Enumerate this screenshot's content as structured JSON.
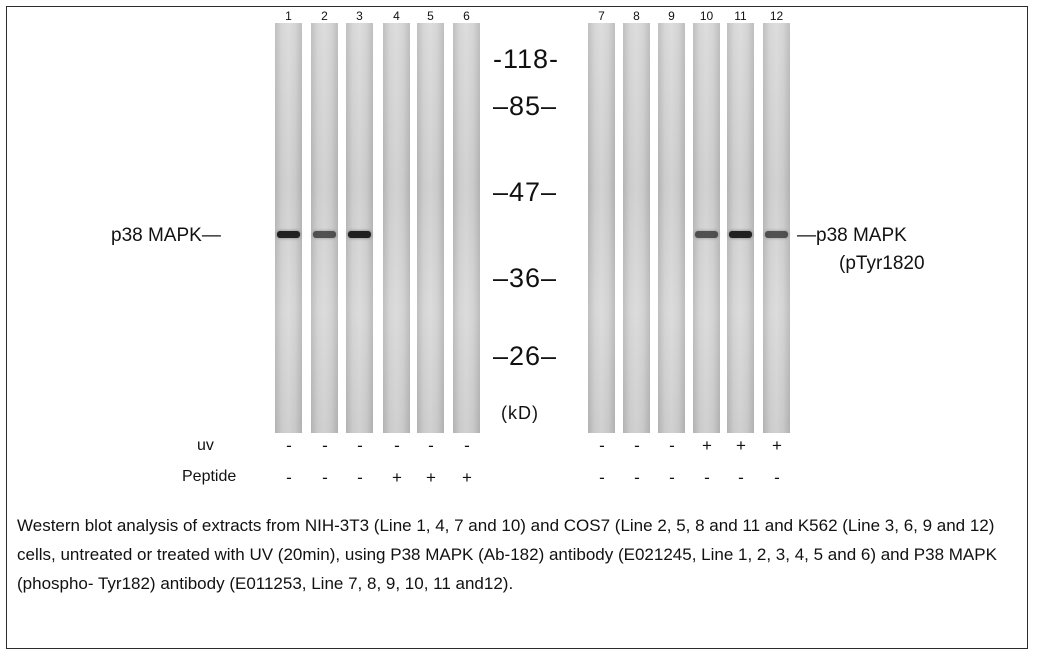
{
  "lanes": [
    {
      "number": "1",
      "band": "strong"
    },
    {
      "number": "2",
      "band": "medium"
    },
    {
      "number": "3",
      "band": "strong"
    },
    {
      "number": "4",
      "band": "none"
    },
    {
      "number": "5",
      "band": "none"
    },
    {
      "number": "6",
      "band": "none"
    },
    {
      "number": "7",
      "band": "none"
    },
    {
      "number": "8",
      "band": "none"
    },
    {
      "number": "9",
      "band": "none"
    },
    {
      "number": "10",
      "band": "medium"
    },
    {
      "number": "11",
      "band": "strong"
    },
    {
      "number": "12",
      "band": "medium"
    }
  ],
  "markers": [
    "-118-",
    "–85–",
    "–47–",
    "–36–",
    "–26–"
  ],
  "unit": "(kD)",
  "left_label": "p38 MAPK—",
  "right_label_line1": "—p38 MAPK",
  "right_label_line2": "(pTyr1820",
  "uv_label": "uv",
  "peptide_label": "Peptide",
  "uv_marks": [
    "-",
    "-",
    "-",
    "-",
    "-",
    "-",
    "-",
    "-",
    "-",
    "+",
    "+",
    "+"
  ],
  "peptide_marks": [
    "-",
    "-",
    "-",
    "+",
    "+",
    "+",
    "-",
    "-",
    "-",
    "-",
    "-",
    "-"
  ],
  "caption": "Western blot analysis of extracts from NIH-3T3 (Line 1, 4, 7 and 10) and COS7 (Line 2, 5, 8 and 11 and K562 (Line 3, 6, 9 and 12) cells, untreated or treated with UV (20min), using P38 MAPK (Ab-182) antibody (E021245, Line 1, 2, 3, 4, 5 and 6) and P38 MAPK (phospho- Tyr182) antibody (E011253, Line 7, 8, 9, 10, 11 and12)."
}
